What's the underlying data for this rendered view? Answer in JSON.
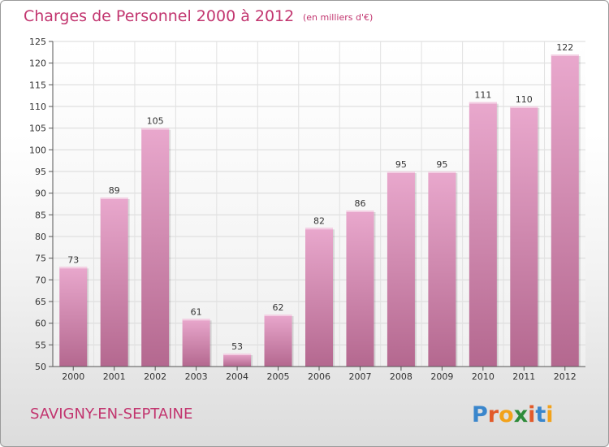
{
  "chart_data": {
    "type": "bar",
    "title": "Charges de Personnel 2000 à 2012",
    "subtitle": "(en milliers d'€)",
    "categories": [
      "2000",
      "2001",
      "2002",
      "2003",
      "2004",
      "2005",
      "2006",
      "2007",
      "2008",
      "2009",
      "2010",
      "2011",
      "2012"
    ],
    "values": [
      73,
      89,
      105,
      61,
      53,
      62,
      82,
      86,
      95,
      95,
      111,
      110,
      122
    ],
    "ylim": [
      50,
      125
    ],
    "yticks": [
      50,
      55,
      60,
      65,
      70,
      75,
      80,
      85,
      90,
      95,
      100,
      105,
      110,
      115,
      120,
      125
    ],
    "grid": true,
    "colors": {
      "bar_light": "#e9a8cd",
      "bar_dark": "#b4688f",
      "title": "#c2356f"
    }
  },
  "footer": {
    "commune": "SAVIGNY-EN-SEPTAINE",
    "logo": {
      "letters": [
        "P",
        "r",
        "o",
        "x",
        "i",
        "t",
        "i"
      ],
      "colors": [
        "#3a86cc",
        "#e25a2a",
        "#f2a21b",
        "#2e8b3a",
        "#e25a2a",
        "#3a86cc",
        "#f2a21b"
      ]
    }
  }
}
